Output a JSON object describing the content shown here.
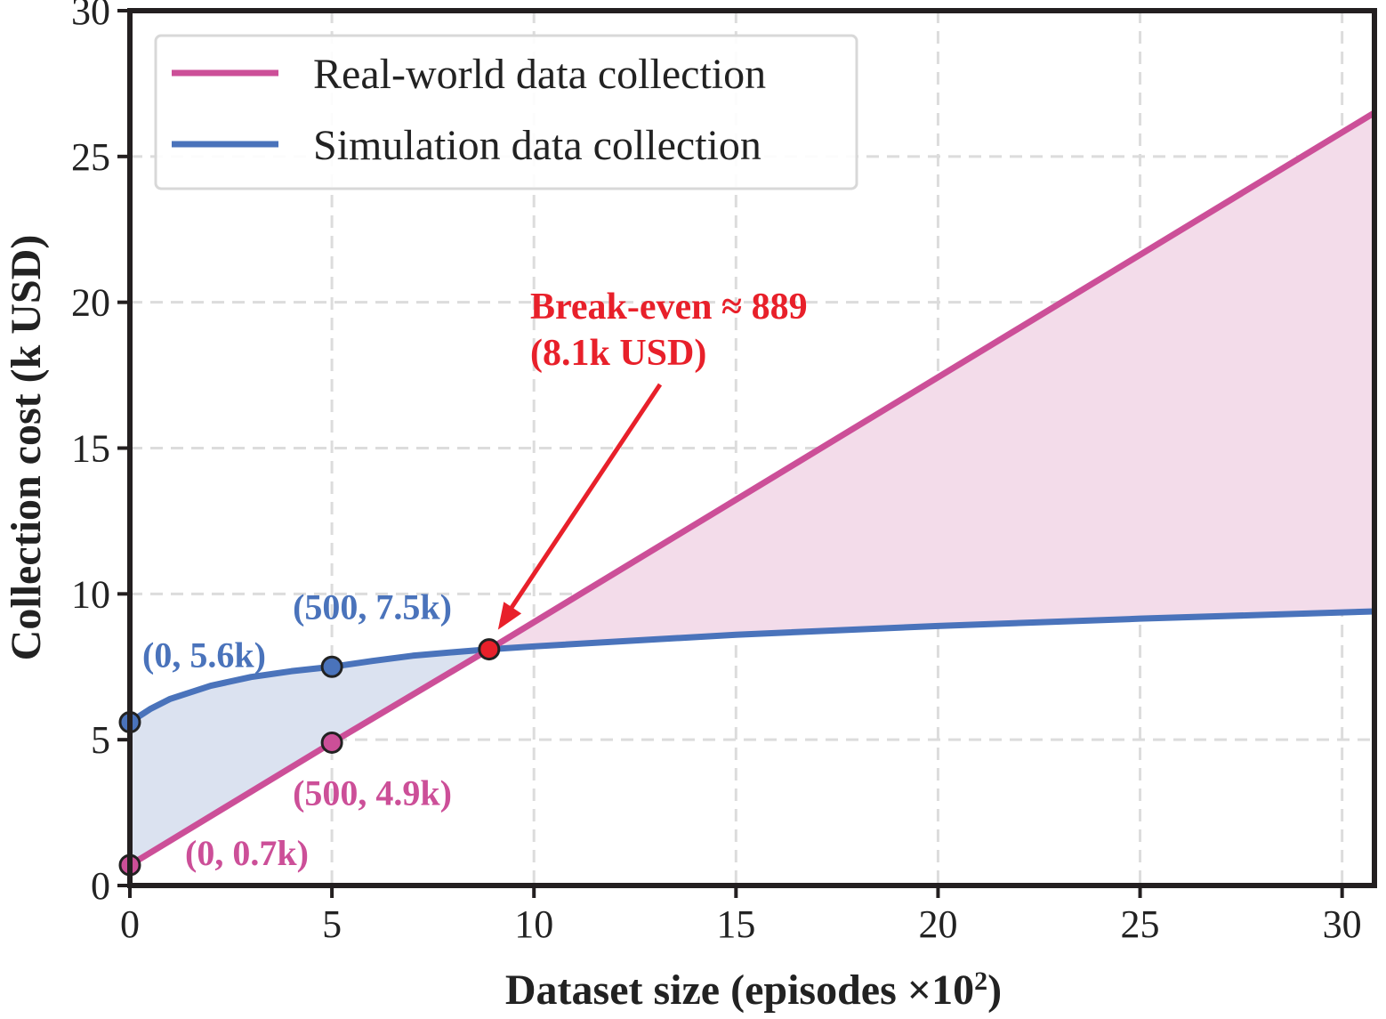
{
  "chart_data": {
    "type": "line",
    "xlabel": "Dataset size (episodes ×10",
    "xlabel_sup": "2",
    "xlabel_end": ")",
    "ylabel": "Collection cost (k USD)",
    "xlim": [
      0,
      30.8
    ],
    "ylim": [
      0,
      30
    ],
    "x_ticks": [
      0,
      5,
      10,
      15,
      20,
      25,
      30
    ],
    "y_ticks": [
      0,
      5,
      10,
      15,
      20,
      25,
      30
    ],
    "grid": true,
    "legend_position": "top-left",
    "series": [
      {
        "name": "Real-world data collection",
        "color": "#cc4f98",
        "kind": "linear",
        "points": [
          [
            0,
            0.7
          ],
          [
            5,
            4.9
          ],
          [
            8.89,
            8.1
          ],
          [
            30.8,
            26.5
          ]
        ]
      },
      {
        "name": "Simulation data collection",
        "color": "#4a73bb",
        "kind": "curve",
        "points": [
          [
            0,
            5.6
          ],
          [
            0.5,
            6.05
          ],
          [
            1,
            6.4
          ],
          [
            2,
            6.85
          ],
          [
            3,
            7.15
          ],
          [
            4,
            7.35
          ],
          [
            5,
            7.5
          ],
          [
            6,
            7.7
          ],
          [
            7,
            7.88
          ],
          [
            8,
            8.0
          ],
          [
            8.89,
            8.1
          ],
          [
            10,
            8.2
          ],
          [
            15,
            8.6
          ],
          [
            20,
            8.9
          ],
          [
            25,
            9.15
          ],
          [
            30.8,
            9.4
          ]
        ]
      }
    ],
    "markers": [
      {
        "x": 0,
        "y": 5.6,
        "color": "#4a73bb",
        "label": "(0, 5.6k)"
      },
      {
        "x": 5,
        "y": 7.5,
        "color": "#4a73bb",
        "label": "(500, 7.5k)"
      },
      {
        "x": 0,
        "y": 0.7,
        "color": "#cc4f98",
        "label": "(0, 0.7k)"
      },
      {
        "x": 5,
        "y": 4.9,
        "color": "#cc4f98",
        "label": "(500, 4.9k)"
      },
      {
        "x": 8.89,
        "y": 8.1,
        "color": "#e8202a",
        "label": ""
      }
    ],
    "break_even": {
      "line1": "Break-even ≈ 889",
      "line2": "(8.1k USD)",
      "color": "#e8202a"
    },
    "fill_colors": {
      "sim_above": "#dbe2f0",
      "real_above": "#f3dcea"
    }
  }
}
